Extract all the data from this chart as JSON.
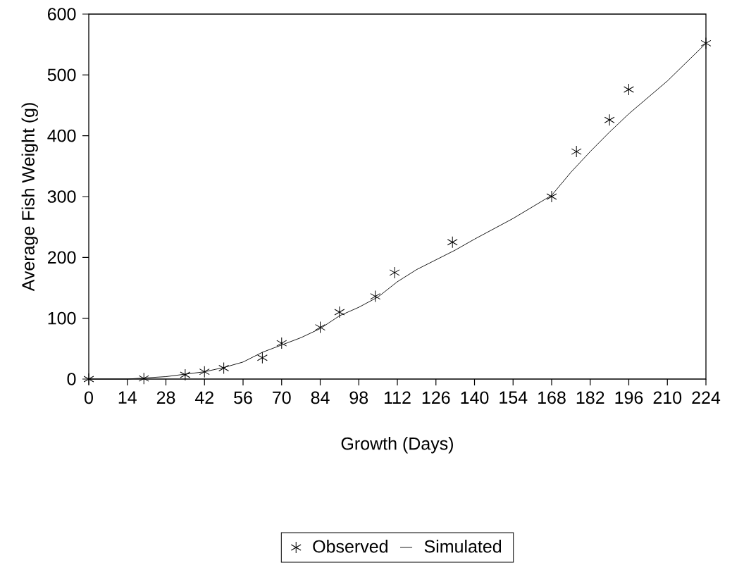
{
  "chart_data": {
    "type": "scatter",
    "xlabel": "Growth (Days)",
    "ylabel": "Average Fish Weight (g)",
    "xlim": [
      0,
      224
    ],
    "ylim": [
      0,
      600
    ],
    "xticks": [
      0,
      14,
      28,
      42,
      56,
      70,
      84,
      98,
      112,
      126,
      140,
      154,
      168,
      182,
      196,
      210,
      224
    ],
    "yticks": [
      0,
      100,
      200,
      300,
      400,
      500,
      600
    ],
    "grid": false,
    "legend": "bottom",
    "series": [
      {
        "name": "Observed",
        "marker": "cross",
        "color": "#000000",
        "x": [
          0,
          20,
          35,
          42,
          49,
          63,
          70,
          84,
          91,
          104,
          111,
          132,
          168,
          177,
          189,
          196,
          224
        ],
        "values": [
          0,
          1,
          7,
          12,
          18,
          35,
          59,
          85,
          110,
          136,
          175,
          225,
          300,
          374,
          426,
          476,
          552
        ]
      },
      {
        "name": "Simulated",
        "type": "line",
        "marker": "none",
        "line_style": "solid",
        "color": "#000000",
        "x": [
          0,
          14,
          21,
          28,
          35,
          42,
          49,
          56,
          63,
          70,
          77,
          84,
          91,
          98,
          105,
          112,
          119,
          126,
          133,
          140,
          154,
          168,
          175,
          182,
          189,
          196,
          210,
          224
        ],
        "values": [
          0,
          0,
          2,
          4,
          8,
          12,
          19,
          28,
          44,
          56,
          68,
          83,
          104,
          118,
          135,
          160,
          180,
          196,
          212,
          230,
          264,
          302,
          340,
          374,
          406,
          436,
          490,
          552
        ]
      }
    ]
  }
}
